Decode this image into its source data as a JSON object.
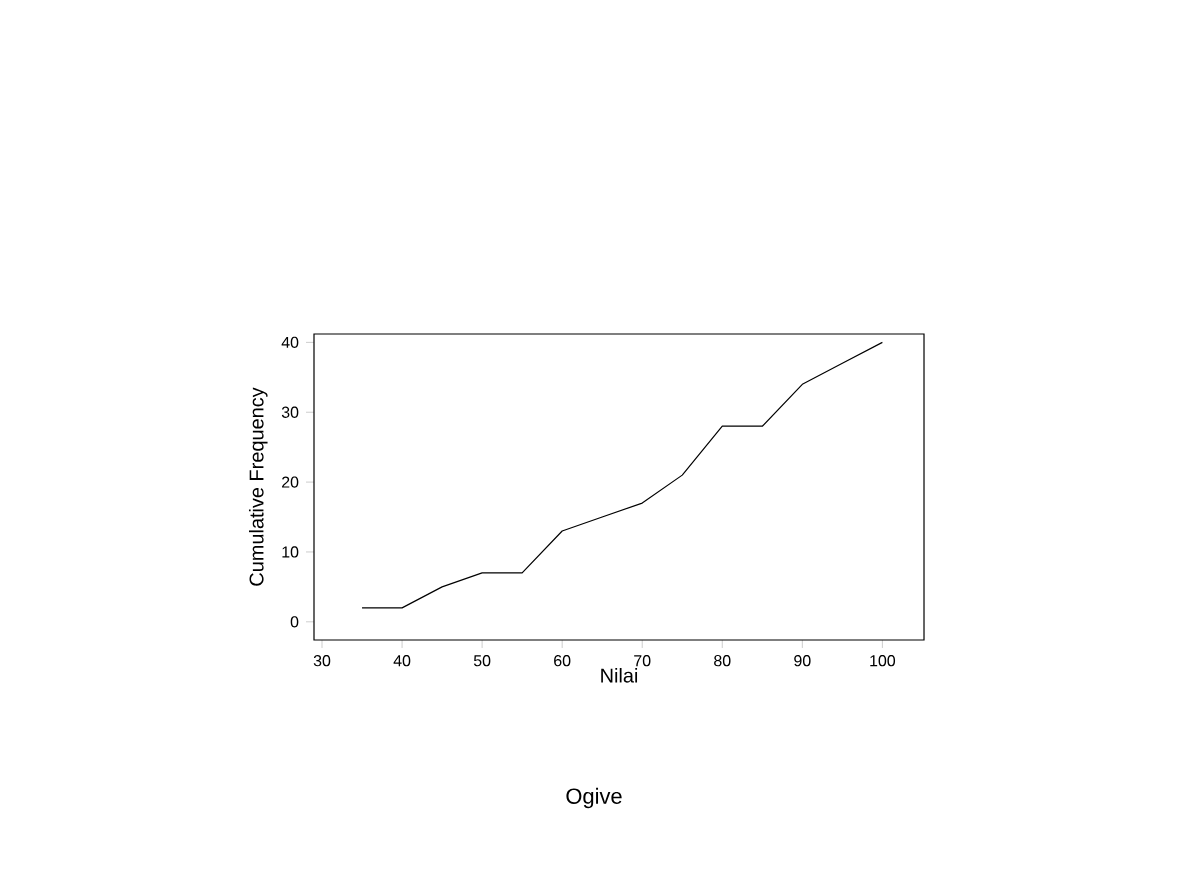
{
  "chart_data": {
    "type": "line",
    "title": "Ogive",
    "xlabel": "Nilai",
    "ylabel": "Cumulative Frequency",
    "x": [
      35,
      40,
      45,
      50,
      55,
      60,
      65,
      70,
      75,
      80,
      85,
      90,
      95,
      100
    ],
    "series": [
      {
        "color": "#000000",
        "values": [
          2,
          2,
          5,
          7,
          7,
          13,
          15,
          17,
          21,
          28,
          28,
          34,
          37,
          40
        ]
      }
    ],
    "xlim": [
      29,
      105.2
    ],
    "ylim": [
      -2.6,
      41.2
    ],
    "xticks": [
      30,
      40,
      50,
      60,
      70,
      80,
      90,
      100
    ],
    "yticks": [
      0,
      10,
      20,
      30,
      40
    ],
    "marker": "none",
    "line_style": "solid"
  }
}
